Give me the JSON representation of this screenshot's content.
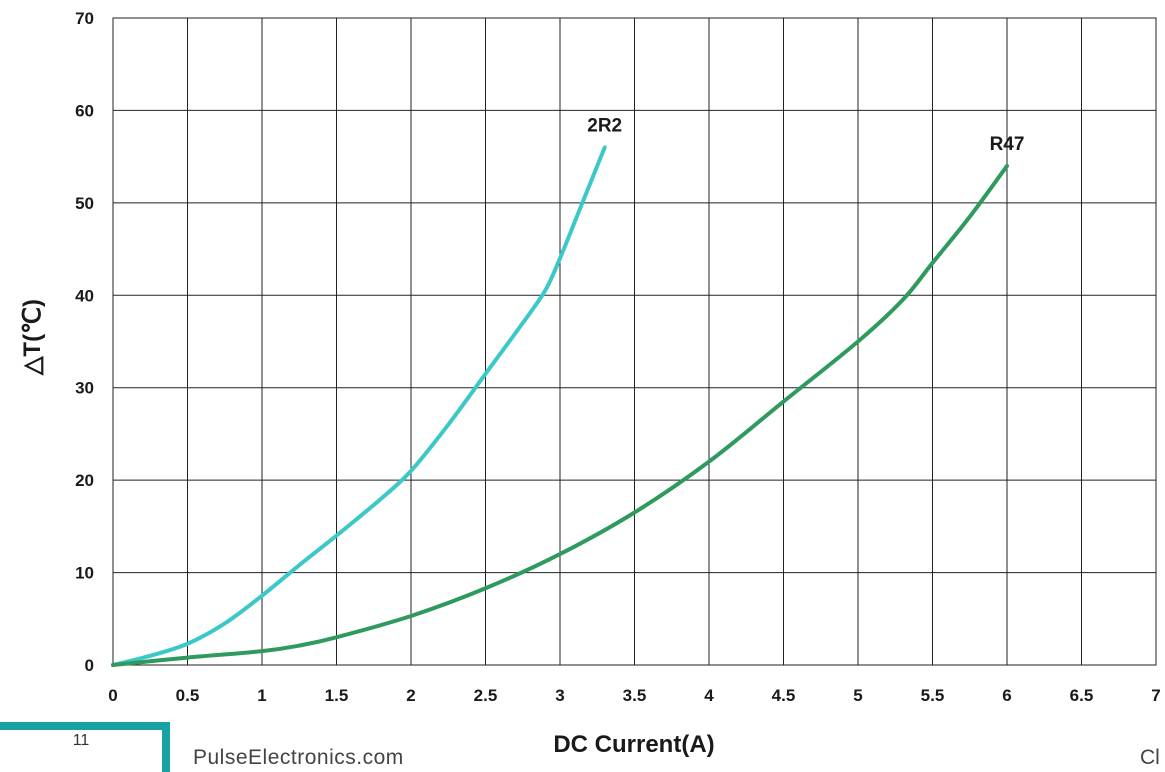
{
  "chart_data": {
    "type": "line",
    "title": "",
    "xlabel": "DC Current(A)",
    "ylabel": "△T(℃)",
    "xlim": [
      0,
      7
    ],
    "ylim": [
      0,
      70
    ],
    "x_ticks": [
      "0",
      "0.5",
      "1",
      "1.5",
      "2",
      "2.5",
      "3",
      "3.5",
      "4",
      "4.5",
      "5",
      "5.5",
      "6",
      "6.5",
      "7"
    ],
    "y_ticks": [
      "0",
      "10",
      "20",
      "30",
      "40",
      "50",
      "60",
      "70"
    ],
    "grid": true,
    "series": [
      {
        "name": "2R2",
        "color": "#3cc8c8",
        "x": [
          0,
          0.25,
          0.5,
          0.75,
          1.0,
          1.25,
          1.5,
          1.8,
          2.0,
          2.25,
          2.5,
          2.75,
          2.9,
          3.0,
          3.15,
          3.3
        ],
        "y": [
          0,
          1.0,
          2.3,
          4.5,
          7.5,
          10.8,
          14.0,
          18.0,
          21.0,
          26.0,
          31.5,
          37.0,
          40.5,
          44.0,
          50.0,
          56.0
        ]
      },
      {
        "name": "R47",
        "color": "#2f9a5e",
        "x": [
          0,
          0.5,
          1.0,
          1.25,
          1.5,
          2.0,
          2.5,
          3.0,
          3.5,
          4.0,
          4.5,
          5.0,
          5.3,
          5.5,
          5.75,
          6.0
        ],
        "y": [
          0,
          0.8,
          1.5,
          2.1,
          3.0,
          5.3,
          8.3,
          12.0,
          16.5,
          22.0,
          28.5,
          35.0,
          39.5,
          43.5,
          48.5,
          54.0
        ]
      }
    ]
  },
  "footer": {
    "page_number": "11",
    "brand": "PulseElectronics.com",
    "right_text": "Cl"
  }
}
